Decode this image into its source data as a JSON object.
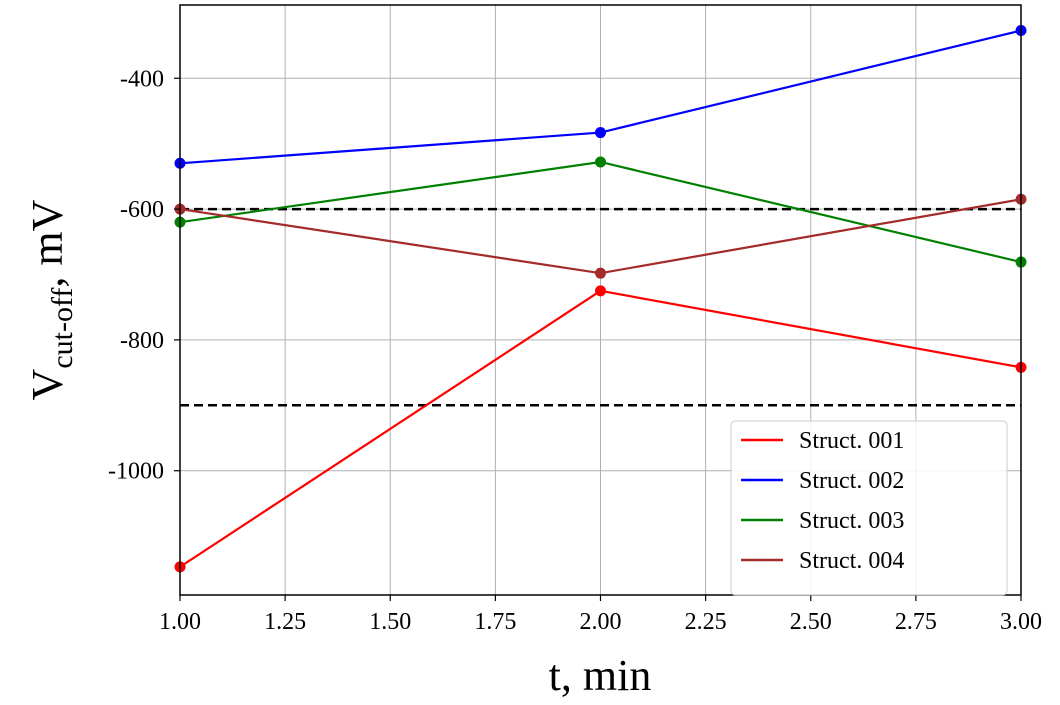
{
  "chart_data": {
    "type": "line",
    "title": "",
    "xlabel": "t, min",
    "ylabel": {
      "base": "V",
      "subscript": "cut-off",
      "suffix": ", mV"
    },
    "xlim": [
      1.0,
      3.0
    ],
    "ylim": [
      -1190,
      -288
    ],
    "x_ticks": [
      1.0,
      1.25,
      1.5,
      1.75,
      2.0,
      2.25,
      2.5,
      2.75,
      3.0
    ],
    "x_tick_labels": [
      "1.00",
      "1.25",
      "1.50",
      "1.75",
      "2.00",
      "2.25",
      "2.50",
      "2.75",
      "3.00"
    ],
    "y_ticks": [
      -1000,
      -800,
      -600,
      -400
    ],
    "y_tick_labels": [
      "-1000",
      "-800",
      "-600",
      "-400"
    ],
    "grid": true,
    "legend_position": "bottom-right",
    "x": [
      1,
      2,
      3
    ],
    "series": [
      {
        "name": "Struct. 001",
        "color": "#ff0000",
        "values": [
          -1147,
          -725,
          -842
        ]
      },
      {
        "name": "Struct. 002",
        "color": "#0000ff",
        "values": [
          -530,
          -483,
          -327
        ]
      },
      {
        "name": "Struct. 003",
        "color": "#008000",
        "values": [
          -620,
          -528,
          -681
        ]
      },
      {
        "name": "Struct. 004",
        "color": "#a52a2a",
        "values": [
          -600,
          -698,
          -585
        ]
      }
    ],
    "reference_lines": [
      {
        "y": -600,
        "color": "#000000",
        "style": "dashed"
      },
      {
        "y": -900,
        "color": "#000000",
        "style": "dashed"
      }
    ]
  }
}
